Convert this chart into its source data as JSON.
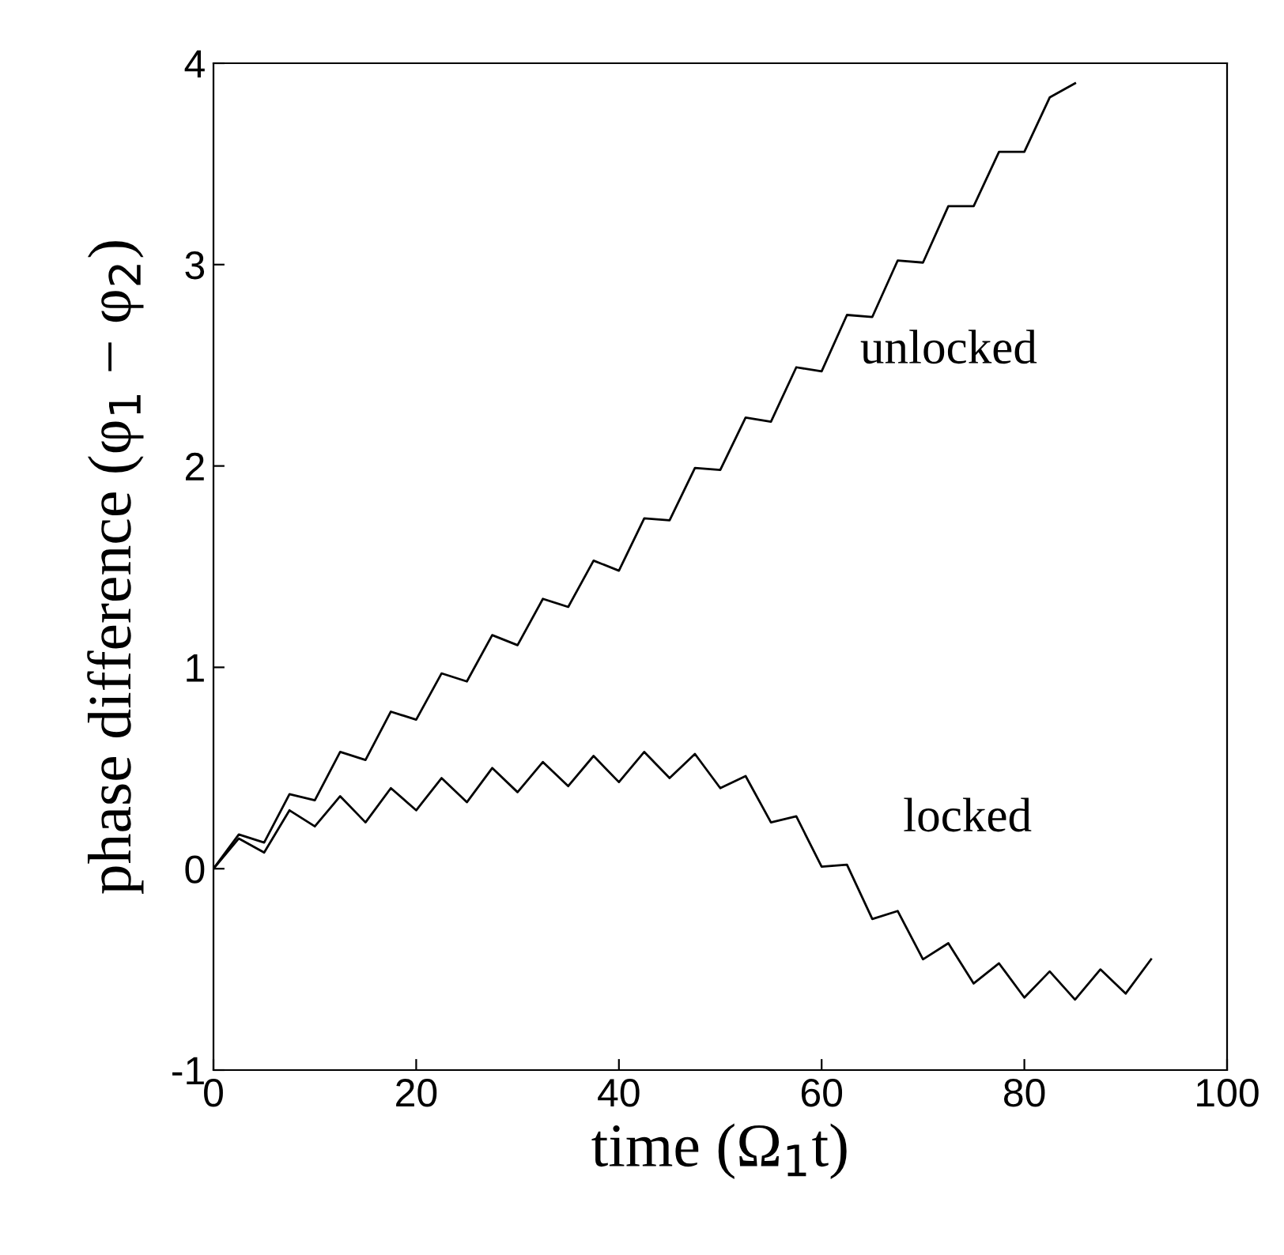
{
  "chart_data": {
    "type": "line",
    "xlabel": "time (Ω$_{1}$t)",
    "ylabel": "phase difference (φ$_{1}$ − φ$_{2}$)",
    "x": [
      0,
      2.5,
      5,
      7.5,
      10,
      12.5,
      15,
      17.5,
      20,
      22.5,
      25,
      27.5,
      30,
      32.5,
      35,
      37.5,
      40,
      42.5,
      45,
      47.5,
      50,
      52.5,
      55,
      57.5,
      60,
      62.5,
      65,
      67.5,
      70,
      72.5,
      75,
      77.5,
      80,
      82.5,
      85,
      87.5,
      90,
      92.5
    ],
    "series": [
      {
        "name": "unlocked",
        "color": "#000000",
        "x": [
          0,
          2.5,
          5,
          7.5,
          10,
          12.5,
          15,
          17.5,
          20,
          22.5,
          25,
          27.5,
          30,
          32.5,
          35,
          37.5,
          40,
          42.5,
          45,
          47.5,
          50,
          52.5,
          55,
          57.5,
          60,
          62.5,
          65,
          67.5,
          70,
          72.5,
          75,
          77.5,
          80,
          82.5,
          85
        ],
        "values": [
          0,
          0.17,
          0.13,
          0.37,
          0.34,
          0.58,
          0.54,
          0.78,
          0.74,
          0.97,
          0.93,
          1.16,
          1.11,
          1.34,
          1.3,
          1.53,
          1.48,
          1.74,
          1.73,
          1.99,
          1.98,
          2.24,
          2.22,
          2.49,
          2.47,
          2.75,
          2.74,
          3.02,
          3.01,
          3.29,
          3.29,
          3.56,
          3.56,
          3.83,
          3.9
        ]
      },
      {
        "name": "locked",
        "color": "#000000",
        "values": [
          0,
          0.15,
          0.08,
          0.29,
          0.21,
          0.36,
          0.23,
          0.4,
          0.29,
          0.45,
          0.33,
          0.5,
          0.38,
          0.53,
          0.41,
          0.56,
          0.43,
          0.58,
          0.45,
          0.57,
          0.4,
          0.46,
          0.23,
          0.26,
          0.01,
          0.02,
          -0.25,
          -0.21,
          -0.45,
          -0.37,
          -0.57,
          -0.47,
          -0.64,
          -0.51,
          -0.65,
          -0.5,
          -0.62,
          -0.45
        ]
      }
    ],
    "xlim": [
      0,
      100
    ],
    "ylim": [
      -1,
      4
    ],
    "xticks": [
      0,
      20,
      40,
      60,
      80,
      100
    ],
    "yticks": [
      -1,
      0,
      1,
      2,
      3,
      4
    ],
    "grid": false,
    "legend": false,
    "marker": "none",
    "line_style": "solid"
  }
}
